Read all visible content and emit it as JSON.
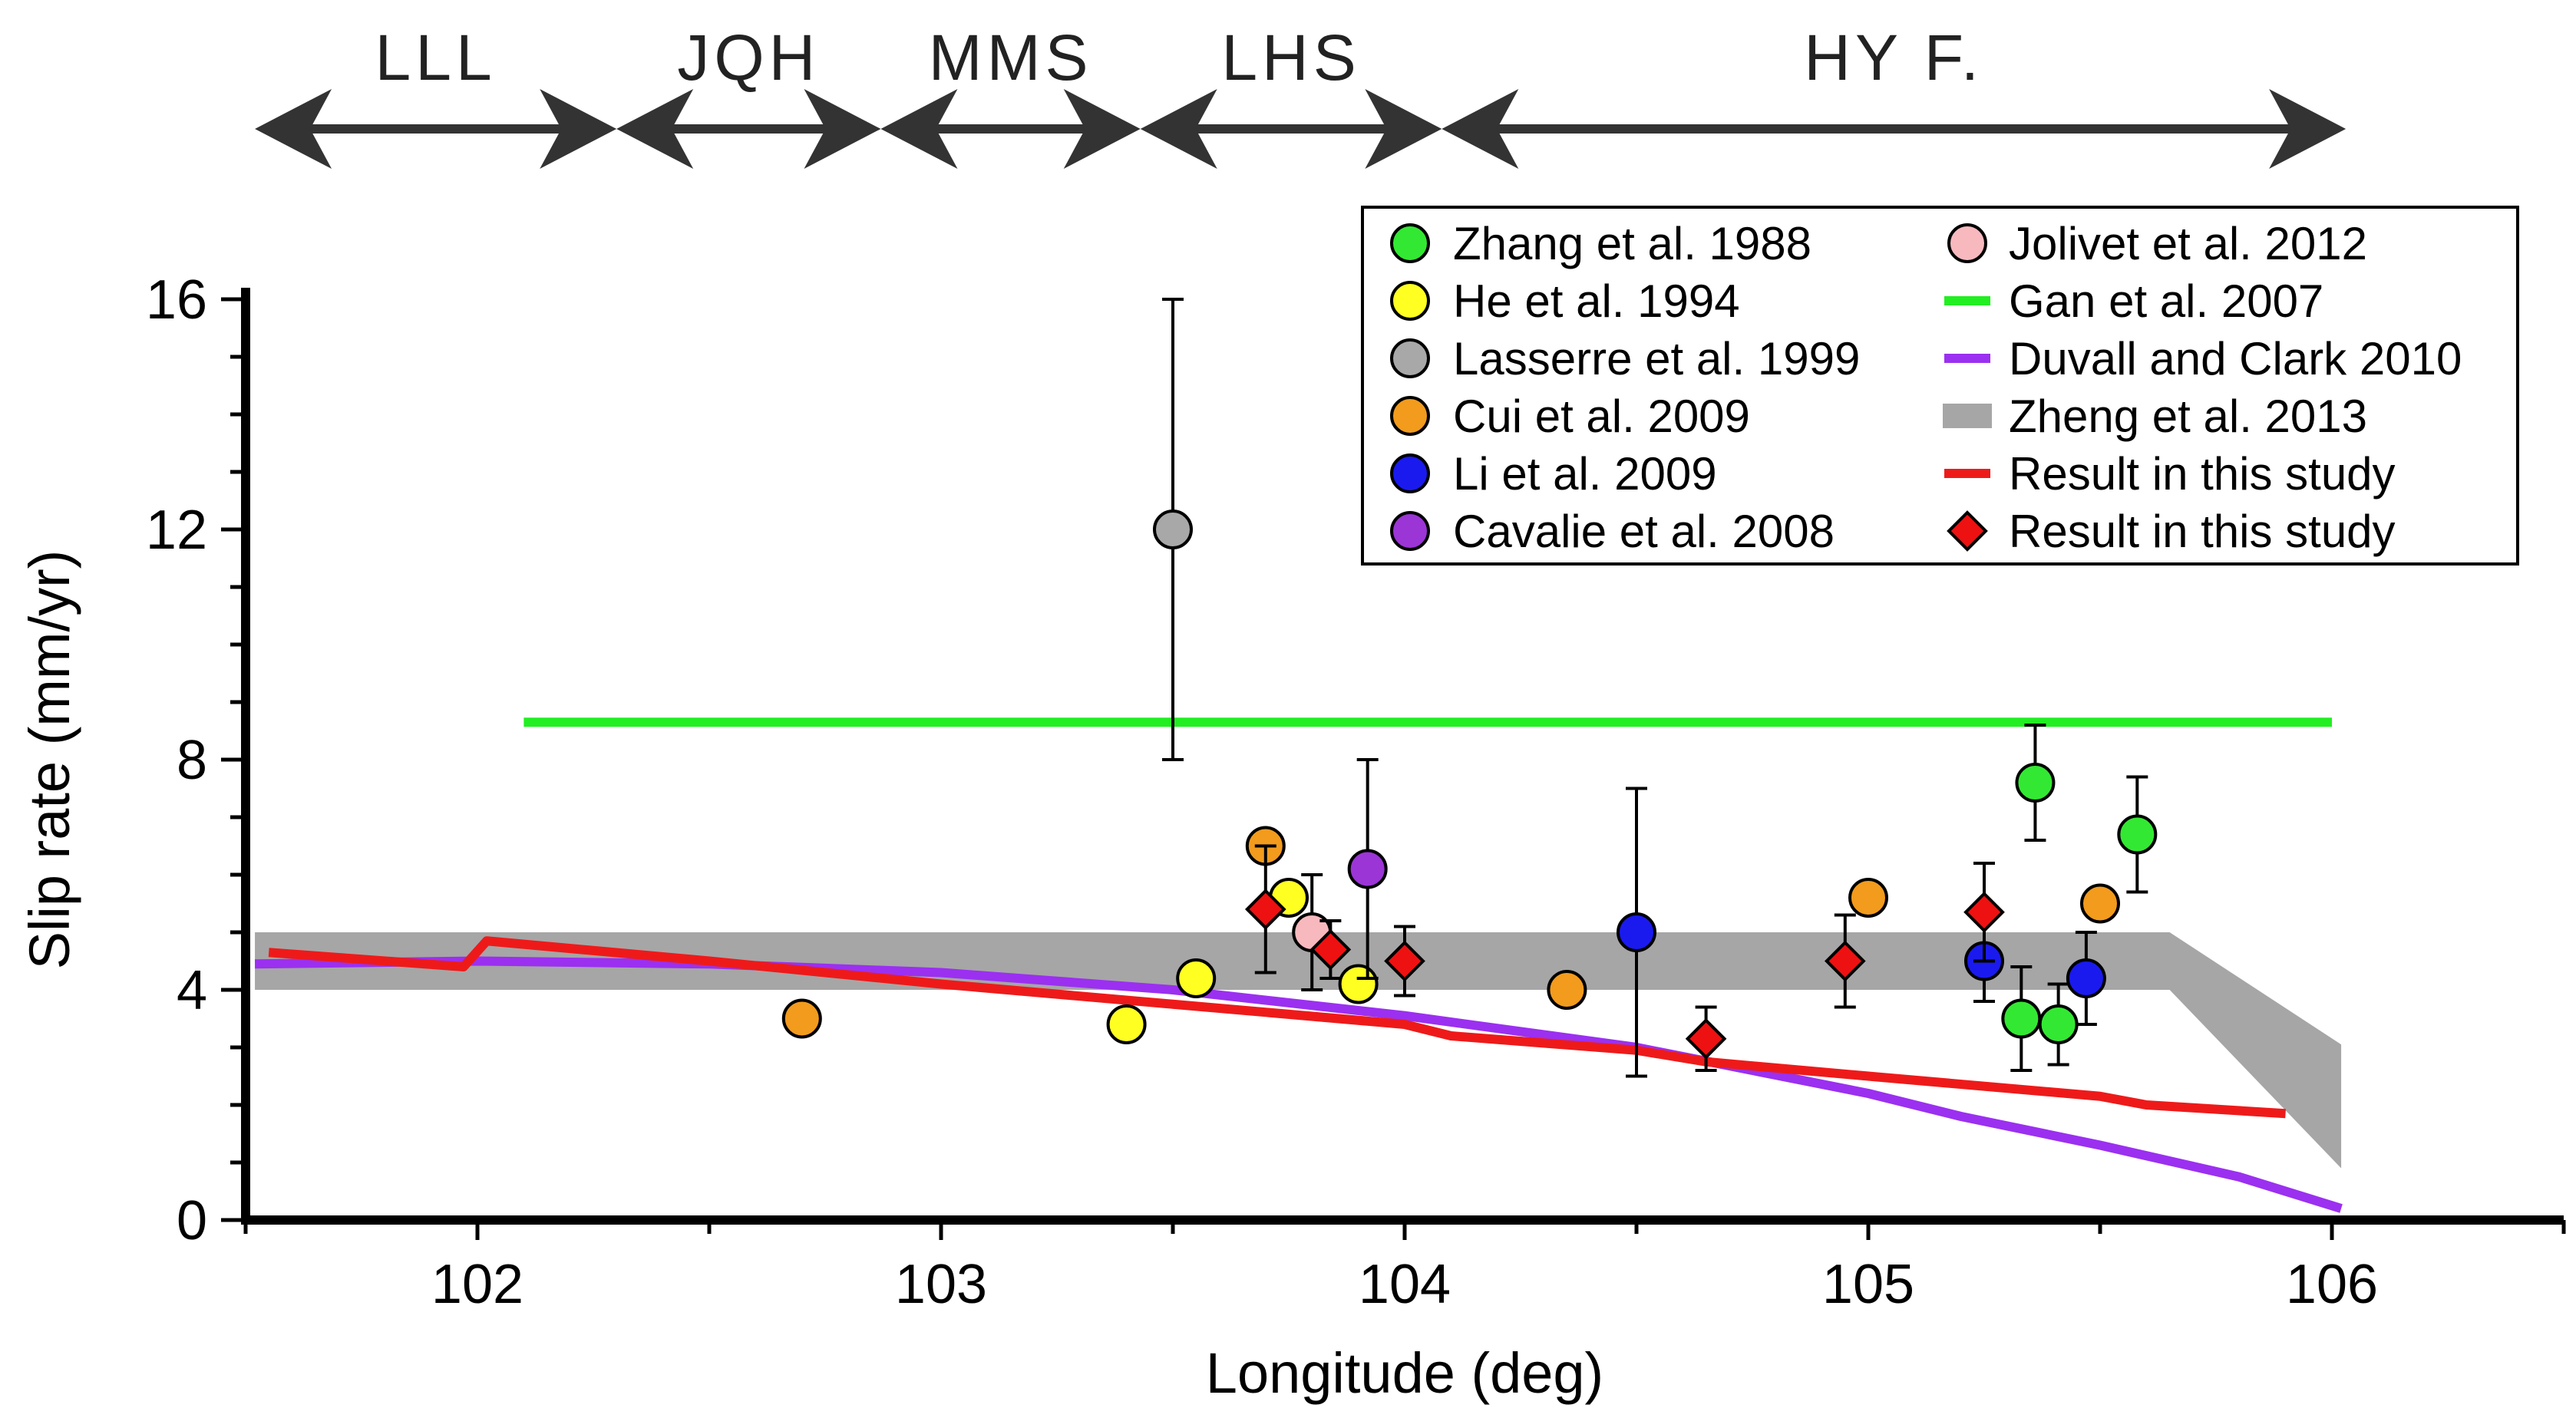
{
  "chart_data": {
    "type": "scatter",
    "xlabel": "Longitude (deg)",
    "ylabel": "Slip rate (mm/yr)",
    "xlim": [
      101.5,
      106.5
    ],
    "ylim": [
      0,
      16
    ],
    "xticks": [
      102,
      103,
      104,
      105,
      106
    ],
    "yticks": [
      0,
      4,
      8,
      12,
      16
    ],
    "segments": [
      {
        "label": "LLL",
        "x0": 101.52,
        "x1": 102.3
      },
      {
        "label": "JQH",
        "x0": 102.3,
        "x1": 102.87
      },
      {
        "label": "MMS",
        "x0": 102.87,
        "x1": 103.43
      },
      {
        "label": "LHS",
        "x0": 103.43,
        "x1": 104.08
      },
      {
        "label": "HY F.",
        "x0": 104.08,
        "x1": 106.03
      }
    ],
    "point_series": [
      {
        "name": "Zhang et al. 1988",
        "color": "#33e833",
        "marker": "circle",
        "points": [
          {
            "x": 105.33,
            "y": 3.5,
            "lo": 2.6,
            "hi": 4.4
          },
          {
            "x": 105.36,
            "y": 7.6,
            "lo": 6.6,
            "hi": 8.6
          },
          {
            "x": 105.41,
            "y": 3.4,
            "lo": 2.7,
            "hi": 4.1
          },
          {
            "x": 105.58,
            "y": 6.7,
            "lo": 5.7,
            "hi": 7.7
          }
        ]
      },
      {
        "name": "He et al. 1994",
        "color": "#ffff22",
        "marker": "circle",
        "points": [
          {
            "x": 103.4,
            "y": 3.4
          },
          {
            "x": 103.55,
            "y": 4.2
          },
          {
            "x": 103.75,
            "y": 5.6
          },
          {
            "x": 103.9,
            "y": 4.1
          }
        ]
      },
      {
        "name": "Lasserre et al. 1999",
        "color": "#a8a8a8",
        "marker": "circle",
        "points": [
          {
            "x": 103.5,
            "y": 12.0,
            "lo": 8.0,
            "hi": 16.0
          }
        ]
      },
      {
        "name": "Cui et al. 2009",
        "color": "#f29b1d",
        "marker": "circle",
        "points": [
          {
            "x": 102.7,
            "y": 3.5
          },
          {
            "x": 103.7,
            "y": 6.5
          },
          {
            "x": 104.35,
            "y": 4.0
          },
          {
            "x": 105.0,
            "y": 5.6
          },
          {
            "x": 105.5,
            "y": 5.5
          }
        ]
      },
      {
        "name": "Li et al. 2009",
        "color": "#1a1aee",
        "marker": "circle",
        "points": [
          {
            "x": 104.5,
            "y": 5.0,
            "lo": 2.5,
            "hi": 7.5
          },
          {
            "x": 105.25,
            "y": 4.5,
            "lo": 3.8,
            "hi": 5.2
          },
          {
            "x": 105.47,
            "y": 4.2,
            "lo": 3.4,
            "hi": 5.0
          }
        ]
      },
      {
        "name": "Cavalie et al. 2008",
        "color": "#9b35d6",
        "marker": "circle",
        "points": [
          {
            "x": 103.92,
            "y": 6.1,
            "lo": 4.2,
            "hi": 8.0
          }
        ]
      },
      {
        "name": "Jolivet et al. 2012",
        "color": "#f8b9be",
        "marker": "circle",
        "points": [
          {
            "x": 103.8,
            "y": 5.0,
            "lo": 4.0,
            "hi": 6.0
          }
        ]
      },
      {
        "name": "Result in this study",
        "color": "#ee1111",
        "marker": "diamond",
        "points": [
          {
            "x": 103.7,
            "y": 5.4,
            "lo": 4.3,
            "hi": 6.5
          },
          {
            "x": 103.84,
            "y": 4.7,
            "lo": 4.2,
            "hi": 5.2
          },
          {
            "x": 104.0,
            "y": 4.5,
            "lo": 3.9,
            "hi": 5.1
          },
          {
            "x": 104.65,
            "y": 3.15,
            "lo": 2.6,
            "hi": 3.7
          },
          {
            "x": 104.95,
            "y": 4.5,
            "lo": 3.7,
            "hi": 5.3
          },
          {
            "x": 105.25,
            "y": 5.35,
            "lo": 4.5,
            "hi": 6.2
          }
        ]
      }
    ],
    "line_series": [
      {
        "name": "Gan et al. 2007",
        "color": "#22ee22",
        "points": [
          [
            102.1,
            8.65
          ],
          [
            106.0,
            8.65
          ]
        ]
      },
      {
        "name": "Duvall and Clark 2010",
        "color": "#9b30f0",
        "points": [
          [
            101.52,
            4.45
          ],
          [
            102.0,
            4.5
          ],
          [
            102.5,
            4.45
          ],
          [
            103.0,
            4.3
          ],
          [
            103.5,
            4.0
          ],
          [
            104.0,
            3.55
          ],
          [
            104.5,
            3.0
          ],
          [
            105.0,
            2.2
          ],
          [
            105.2,
            1.8
          ],
          [
            105.5,
            1.3
          ],
          [
            105.8,
            0.75
          ],
          [
            106.02,
            0.2
          ]
        ]
      },
      {
        "name": "Result in this study",
        "color": "#ee1a1a",
        "points": [
          [
            101.55,
            4.65
          ],
          [
            101.97,
            4.4
          ],
          [
            102.02,
            4.85
          ],
          [
            102.5,
            4.5
          ],
          [
            103.0,
            4.1
          ],
          [
            103.5,
            3.75
          ],
          [
            104.0,
            3.4
          ],
          [
            104.1,
            3.2
          ],
          [
            104.5,
            2.95
          ],
          [
            104.65,
            2.75
          ],
          [
            105.0,
            2.5
          ],
          [
            105.5,
            2.15
          ],
          [
            105.6,
            2.0
          ],
          [
            105.9,
            1.85
          ]
        ]
      }
    ],
    "band_series": [
      {
        "name": "Zheng et al. 2013",
        "color": "#a6a6a6",
        "upper": [
          [
            101.52,
            5.0
          ],
          [
            105.65,
            5.0
          ],
          [
            106.02,
            3.05
          ]
        ],
        "lower": [
          [
            101.52,
            4.0
          ],
          [
            105.65,
            4.0
          ],
          [
            106.02,
            0.9
          ]
        ]
      }
    ],
    "legend": {
      "position": "top-right",
      "col1": [
        {
          "label": "Zhang et al. 1988",
          "symbol": "circle",
          "color": "#33e833"
        },
        {
          "label": "He et al. 1994",
          "symbol": "circle",
          "color": "#ffff22"
        },
        {
          "label": "Lasserre et al. 1999",
          "symbol": "circle",
          "color": "#a8a8a8"
        },
        {
          "label": "Cui et al. 2009",
          "symbol": "circle",
          "color": "#f29b1d"
        },
        {
          "label": "Li et al. 2009",
          "symbol": "circle",
          "color": "#1a1aee"
        },
        {
          "label": "Cavalie et al. 2008",
          "symbol": "circle",
          "color": "#9b35d6"
        }
      ],
      "col2": [
        {
          "label": "Jolivet et al. 2012",
          "symbol": "circle",
          "color": "#f8b9be"
        },
        {
          "label": "Gan et al. 2007",
          "symbol": "line",
          "color": "#22ee22"
        },
        {
          "label": "Duvall and Clark 2010",
          "symbol": "line",
          "color": "#9b30f0"
        },
        {
          "label": "Zheng et al. 2013",
          "symbol": "band",
          "color": "#a6a6a6"
        },
        {
          "label": "Result in this study",
          "symbol": "line",
          "color": "#ee1a1a"
        },
        {
          "label": "Result in this study",
          "symbol": "diamond",
          "color": "#ee1111"
        }
      ]
    }
  }
}
